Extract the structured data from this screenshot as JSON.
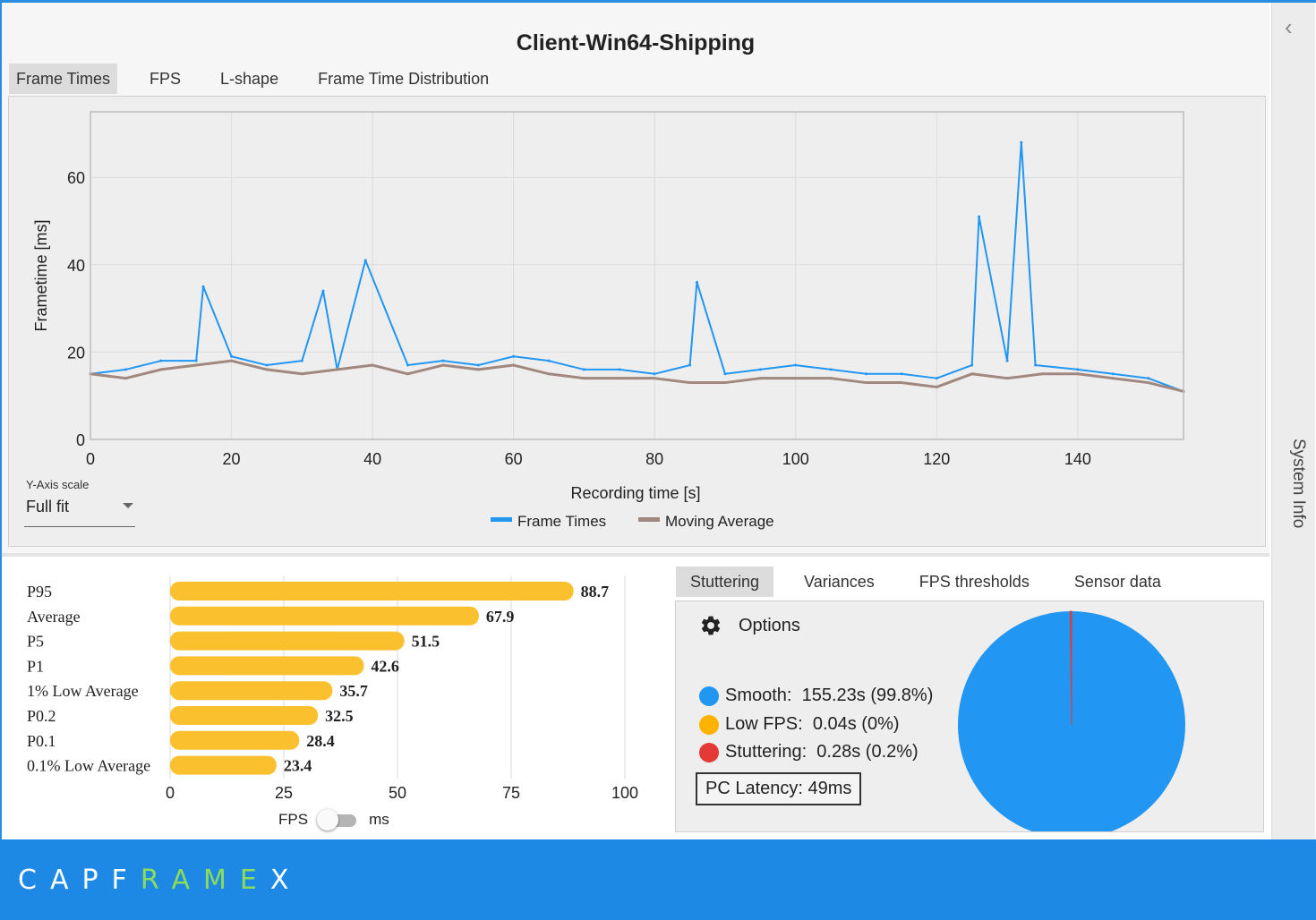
{
  "window": {
    "title": "Client-Win64-Shipping"
  },
  "top_tabs": [
    {
      "label": "Frame Times",
      "active": true
    },
    {
      "label": "FPS",
      "active": false
    },
    {
      "label": "L-shape",
      "active": false
    },
    {
      "label": "Frame Time Distribution",
      "active": false
    }
  ],
  "y_axis_scale": {
    "label": "Y-Axis scale",
    "value": "Full fit"
  },
  "sidebar": {
    "label": "System Info",
    "collapse_icon": "chevron-left-icon"
  },
  "chart_data": [
    {
      "type": "line",
      "title": "",
      "xlabel": "Recording time [s]",
      "ylabel": "Frametime [ms]",
      "xlim": [
        0,
        155
      ],
      "ylim": [
        0,
        75
      ],
      "xticks": [
        0,
        20,
        40,
        60,
        80,
        100,
        120,
        140
      ],
      "yticks": [
        0,
        20,
        40,
        60
      ],
      "grid": true,
      "legend": "bottom-center",
      "series": [
        {
          "name": "Frame Times",
          "color": "#2196f3",
          "x": [
            0,
            5,
            10,
            15,
            16,
            20,
            25,
            30,
            33,
            35,
            39,
            45,
            50,
            55,
            60,
            65,
            70,
            75,
            80,
            85,
            86,
            90,
            95,
            100,
            105,
            110,
            115,
            120,
            125,
            126,
            130,
            132,
            134,
            140,
            145,
            150,
            155
          ],
          "y": [
            15,
            16,
            18,
            18,
            35,
            19,
            17,
            18,
            34,
            16,
            41,
            17,
            18,
            17,
            19,
            18,
            16,
            16,
            15,
            17,
            36,
            15,
            16,
            17,
            16,
            15,
            15,
            14,
            17,
            51,
            18,
            68,
            17,
            16,
            15,
            14,
            11
          ]
        },
        {
          "name": "Moving Average",
          "color": "#a1887f",
          "x": [
            0,
            5,
            10,
            15,
            20,
            25,
            30,
            35,
            40,
            45,
            50,
            55,
            60,
            65,
            70,
            75,
            80,
            85,
            90,
            95,
            100,
            105,
            110,
            115,
            120,
            125,
            130,
            135,
            140,
            145,
            150,
            155
          ],
          "y": [
            15,
            14,
            16,
            17,
            18,
            16,
            15,
            16,
            17,
            15,
            17,
            16,
            17,
            15,
            14,
            14,
            14,
            13,
            13,
            14,
            14,
            14,
            13,
            13,
            12,
            15,
            14,
            15,
            15,
            14,
            13,
            11
          ]
        }
      ]
    },
    {
      "type": "bar",
      "orientation": "horizontal",
      "title": "",
      "categories": [
        "P95",
        "Average",
        "P5",
        "P1",
        "1% Low Average",
        "P0.2",
        "P0.1",
        "0.1% Low Average"
      ],
      "values": [
        88.7,
        67.9,
        51.5,
        42.6,
        35.7,
        32.5,
        28.4,
        23.4
      ],
      "xlim": [
        0,
        100
      ],
      "xticks": [
        0,
        25,
        50,
        75,
        100
      ],
      "grid": true,
      "color": "#fbc02d"
    },
    {
      "type": "pie",
      "categories": [
        "Smooth",
        "Low FPS",
        "Stuttering"
      ],
      "values": [
        99.8,
        0.0,
        0.2
      ],
      "colors": [
        "#2196f3",
        "#ffb300",
        "#e53935"
      ]
    }
  ],
  "unit_toggle": {
    "left": "FPS",
    "right": "ms",
    "state": "FPS"
  },
  "bottom_tabs": [
    {
      "label": "Stuttering",
      "active": true
    },
    {
      "label": "Variances",
      "active": false
    },
    {
      "label": "FPS thresholds",
      "active": false
    },
    {
      "label": "Sensor data",
      "active": false
    }
  ],
  "stuttering": {
    "options_label": "Options",
    "options_icon": "gear-icon",
    "legend": [
      {
        "label": "Smooth:",
        "value": "155.23s (99.8%)",
        "color": "#2196f3"
      },
      {
        "label": "Low FPS:",
        "value": "0.04s (0%)",
        "color": "#ffb300"
      },
      {
        "label": "Stuttering:",
        "value": "0.28s (0.2%)",
        "color": "#e53935"
      }
    ],
    "latency": "PC Latency: 49ms"
  },
  "footer": {
    "logo_a": "CAPF",
    "logo_b": "RAM",
    "logo_c": "E",
    "logo_d": "X"
  }
}
